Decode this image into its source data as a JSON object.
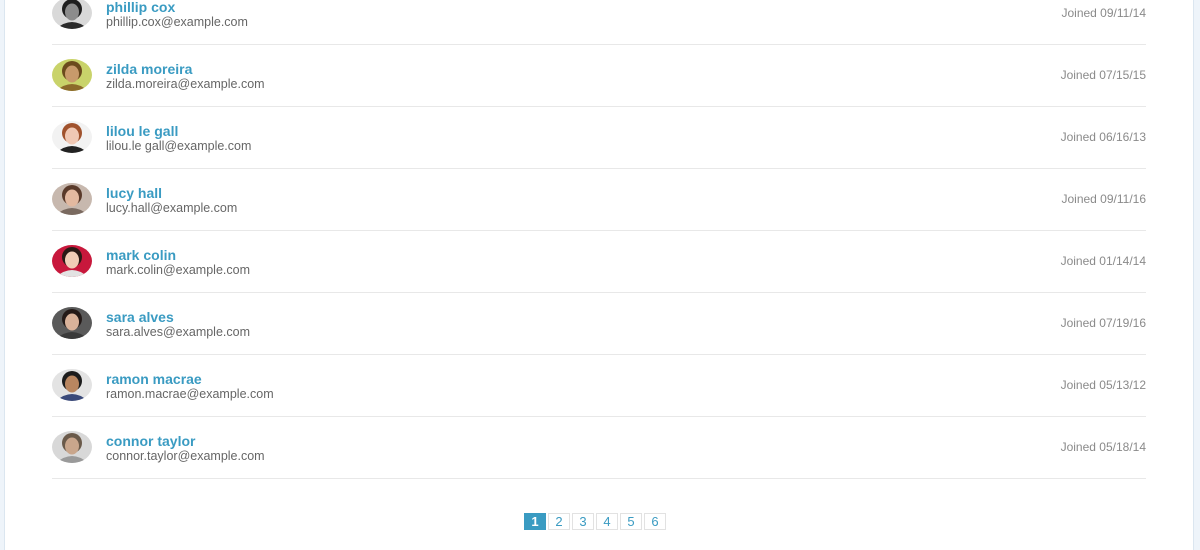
{
  "users": [
    {
      "name": "phillip cox",
      "email": "phillip.cox@example.com",
      "joined": "Joined 09/11/14",
      "avatar": {
        "bg": "#d9d9d9",
        "skin": "#8c8c8c",
        "hair": "#1e1e1e",
        "shirt": "#2b2b2b"
      }
    },
    {
      "name": "zilda moreira",
      "email": "zilda.moreira@example.com",
      "joined": "Joined 07/15/15",
      "avatar": {
        "bg": "#c9d36a",
        "skin": "#c89a6b",
        "hair": "#6b4a1d",
        "shirt": "#8c6a2a"
      }
    },
    {
      "name": "lilou le gall",
      "email": "lilou.le gall@example.com",
      "joined": "Joined 06/16/13",
      "avatar": {
        "bg": "#f2f2f2",
        "skin": "#f0c8b4",
        "hair": "#a0522d",
        "shirt": "#222222"
      }
    },
    {
      "name": "lucy hall",
      "email": "lucy.hall@example.com",
      "joined": "Joined 09/11/16",
      "avatar": {
        "bg": "#c7b8ae",
        "skin": "#e3b9a0",
        "hair": "#5a3a2a",
        "shirt": "#7a6a60"
      }
    },
    {
      "name": "mark colin",
      "email": "mark.colin@example.com",
      "joined": "Joined 01/14/14",
      "avatar": {
        "bg": "#c8183c",
        "skin": "#f1cdb7",
        "hair": "#2a1a16",
        "shirt": "#e2e2e2"
      }
    },
    {
      "name": "sara alves",
      "email": "sara.alves@example.com",
      "joined": "Joined 07/19/16",
      "avatar": {
        "bg": "#5a5a5a",
        "skin": "#d9b29a",
        "hair": "#241a18",
        "shirt": "#3a3a3a"
      }
    },
    {
      "name": "ramon macrae",
      "email": "ramon.macrae@example.com",
      "joined": "Joined 05/13/12",
      "avatar": {
        "bg": "#e3e3e3",
        "skin": "#b98660",
        "hair": "#1c1c1c",
        "shirt": "#3b4a7a"
      }
    },
    {
      "name": "connor taylor",
      "email": "connor.taylor@example.com",
      "joined": "Joined 05/18/14",
      "avatar": {
        "bg": "#d8d8d8",
        "skin": "#c9a68c",
        "hair": "#6a5a4a",
        "shirt": "#9a9a9a"
      }
    }
  ],
  "pagination": {
    "pages": [
      "1",
      "2",
      "3",
      "4",
      "5",
      "6"
    ],
    "current": "1"
  },
  "colors": {
    "accent": "#3a9bc2",
    "email_text": "#666666",
    "joined_text": "#8a8a8a"
  }
}
